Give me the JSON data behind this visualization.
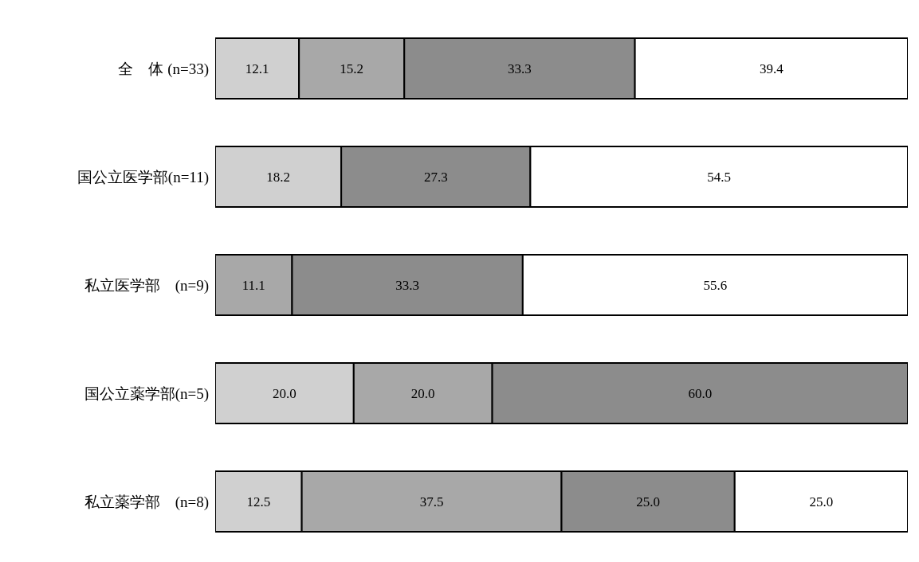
{
  "chart_data": {
    "type": "bar",
    "orientation": "horizontal",
    "stacked": true,
    "tick_labels": "y",
    "categories": [
      "全　体 (n=33)",
      "国公立医学部(n=11)",
      "私立医学部　(n=9)",
      "国公立薬学部(n=5)",
      "私立薬学部　(n=8)"
    ],
    "series": [
      {
        "color": "#d0d0d0",
        "values": [
          12.1,
          18.2,
          0,
          20.0,
          12.5
        ],
        "value_labels": [
          "12.1",
          "18.2",
          null,
          "20.0",
          "12.5"
        ]
      },
      {
        "color": "#a8a8a8",
        "values": [
          15.2,
          0,
          11.1,
          20.0,
          37.5
        ],
        "value_labels": [
          "15.2",
          null,
          "11.1",
          "20.0",
          "37.5"
        ]
      },
      {
        "color": "#8c8c8c",
        "values": [
          33.3,
          27.3,
          33.3,
          60.0,
          25.0
        ],
        "value_labels": [
          "33.3",
          "27.3",
          "33.3",
          "60.0",
          "25.0"
        ]
      },
      {
        "color": "#ffffff",
        "values": [
          39.4,
          54.5,
          55.6,
          0,
          25.0
        ],
        "value_labels": [
          "39.4",
          "54.5",
          "55.6",
          null,
          "25.0"
        ]
      }
    ],
    "xlim": [
      0,
      100
    ]
  }
}
